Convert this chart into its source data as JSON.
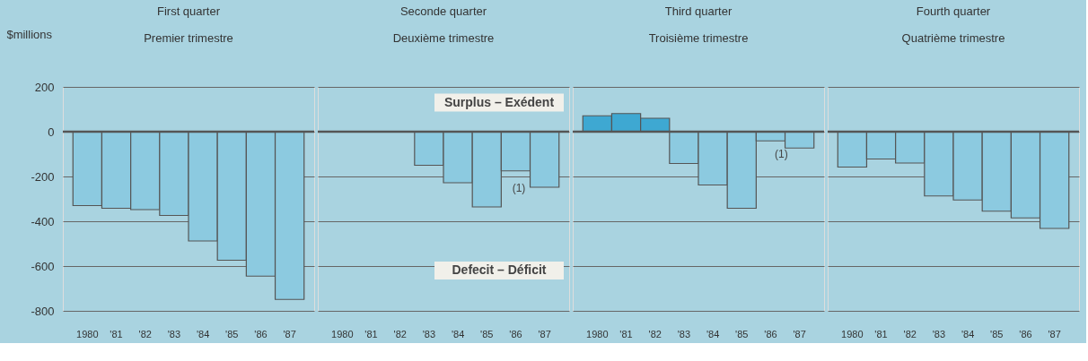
{
  "chart_data": [
    {
      "type": "bar",
      "title": "First quarter",
      "subtitle": "Premier trimestre",
      "ylabel": "$millions",
      "categories": [
        "1980",
        "'81",
        "'82",
        "'83",
        "'84",
        "'85",
        "'86",
        "'87"
      ],
      "values": [
        -330,
        -342,
        -348,
        -374,
        -488,
        -574,
        -645,
        -749
      ],
      "colors": [
        "#8ccae0",
        "#8ccae0",
        "#8ccae0",
        "#8ccae0",
        "#8ccae0",
        "#8ccae0",
        "#8ccae0",
        "#8ccae0"
      ],
      "ylim": [
        -800,
        200
      ],
      "yticks": [
        -800,
        -600,
        -400,
        -200,
        0,
        200
      ],
      "grid": "y",
      "ref_lines": [
        {
          "axis": "y",
          "value": 0
        }
      ]
    },
    {
      "type": "bar",
      "title": "Seconde quarter",
      "subtitle": "Deuxième trimestre",
      "categories": [
        "1980",
        "'81",
        "'82",
        "'83",
        "'84",
        "'85",
        "'86",
        "'87"
      ],
      "values": [
        null,
        null,
        null,
        -150,
        -228,
        -336,
        -175,
        -248
      ],
      "colors": [
        "#8ccae0",
        "#8ccae0",
        "#8ccae0",
        "#8ccae0",
        "#8ccae0",
        "#8ccae0",
        "#8ccae0",
        "#8ccae0"
      ],
      "ylim": [
        -800,
        200
      ],
      "yticks": [
        -800,
        -600,
        -400,
        -200,
        0,
        200
      ],
      "grid": "y",
      "tick_labels": "x",
      "ref_lines": [
        {
          "axis": "y",
          "value": 0
        }
      ],
      "annotations": [
        "(1)",
        "Surplus – Exédent",
        "Defecit – Déficit"
      ]
    },
    {
      "type": "bar",
      "title": "Third quarter",
      "subtitle": "Troisième trimestre",
      "categories": [
        "1980",
        "'81",
        "'82",
        "'83",
        "'84",
        "'85",
        "'86",
        "'87"
      ],
      "values": [
        71,
        81,
        60,
        -142,
        -238,
        -342,
        -41,
        -73
      ],
      "colors": [
        "#3ea8d2",
        "#3ea8d2",
        "#3ea8d2",
        "#8ccae0",
        "#8ccae0",
        "#8ccae0",
        "#8ccae0",
        "#8ccae0"
      ],
      "ylim": [
        -800,
        200
      ],
      "yticks": [
        -800,
        -600,
        -400,
        -200,
        0,
        200
      ],
      "grid": "y",
      "tick_labels": "x",
      "ref_lines": [
        {
          "axis": "y",
          "value": 0
        }
      ],
      "annotations": [
        "(1)"
      ]
    },
    {
      "type": "bar",
      "title": "Fourth quarter",
      "subtitle": "Quatrième trimestre",
      "categories": [
        "1980",
        "'81",
        "'82",
        "'83",
        "'84",
        "'85",
        "'86",
        "'87"
      ],
      "values": [
        -158,
        -122,
        -140,
        -287,
        -305,
        -355,
        -385,
        -432
      ],
      "colors": [
        "#8ccae0",
        "#8ccae0",
        "#8ccae0",
        "#8ccae0",
        "#8ccae0",
        "#8ccae0",
        "#8ccae0",
        "#8ccae0"
      ],
      "ylim": [
        -800,
        200
      ],
      "yticks": [
        -800,
        -600,
        -400,
        -200,
        0,
        200
      ],
      "grid": "y",
      "tick_labels": "x",
      "ref_lines": [
        {
          "axis": "y",
          "value": 0
        }
      ]
    }
  ]
}
